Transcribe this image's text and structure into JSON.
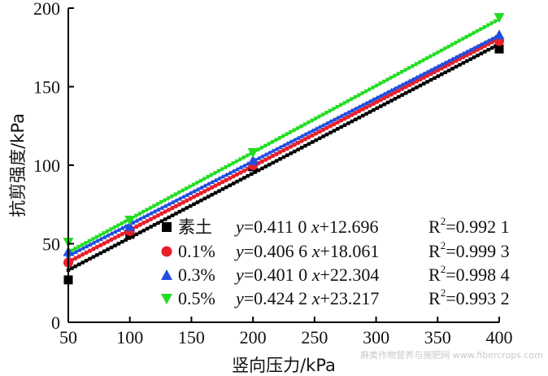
{
  "chart_data": {
    "type": "scatter",
    "xlabel": "竖向压力/kPa",
    "ylabel": "抗剪强度/kPa",
    "xlim": [
      50,
      400
    ],
    "ylim": [
      0,
      200
    ],
    "xticks": [
      "50",
      "100",
      "150",
      "200",
      "250",
      "300",
      "350",
      "400"
    ],
    "yticks": [
      "0",
      "50",
      "100",
      "150",
      "200"
    ],
    "x": [
      50,
      100,
      200,
      400
    ],
    "series": [
      {
        "name": "素土",
        "marker": "square",
        "color": "#000000",
        "values": [
          27,
          56,
          99,
          174
        ],
        "fit": {
          "slope": 0.411,
          "intercept": 12.696
        },
        "equation": {
          "coef": "0.411 0",
          "intercept": "12.696",
          "r2": "0.992 1"
        }
      },
      {
        "name": "0.1%",
        "marker": "circle",
        "color": "#e8202a",
        "values": [
          38,
          58,
          100,
          179
        ],
        "fit": {
          "slope": 0.4066,
          "intercept": 18.061
        },
        "equation": {
          "coef": "0.406 6",
          "intercept": "18.061",
          "r2": "0.999 3"
        }
      },
      {
        "name": "0.3%",
        "marker": "triangle-up",
        "color": "#1f4fe0",
        "values": [
          45,
          61,
          103,
          183
        ],
        "fit": {
          "slope": 0.401,
          "intercept": 22.304
        },
        "equation": {
          "coef": "0.401 0",
          "intercept": "22.304",
          "r2": "0.998 4"
        }
      },
      {
        "name": "0.5%",
        "marker": "triangle-down",
        "color": "#22dd22",
        "values": [
          51,
          65,
          108,
          194
        ],
        "fit": {
          "slope": 0.4242,
          "intercept": 23.217
        },
        "equation": {
          "coef": "0.424 2",
          "intercept": "23.217",
          "r2": "0.993 2"
        }
      }
    ]
  },
  "legend": {
    "y_prefix": "y",
    "eq_sign": "=",
    "x_var": "x",
    "plus": "+",
    "r_prefix": "R",
    "r_exp": "2"
  },
  "watermark": "麻类作物营养与施肥网 www.fibercrops.com"
}
